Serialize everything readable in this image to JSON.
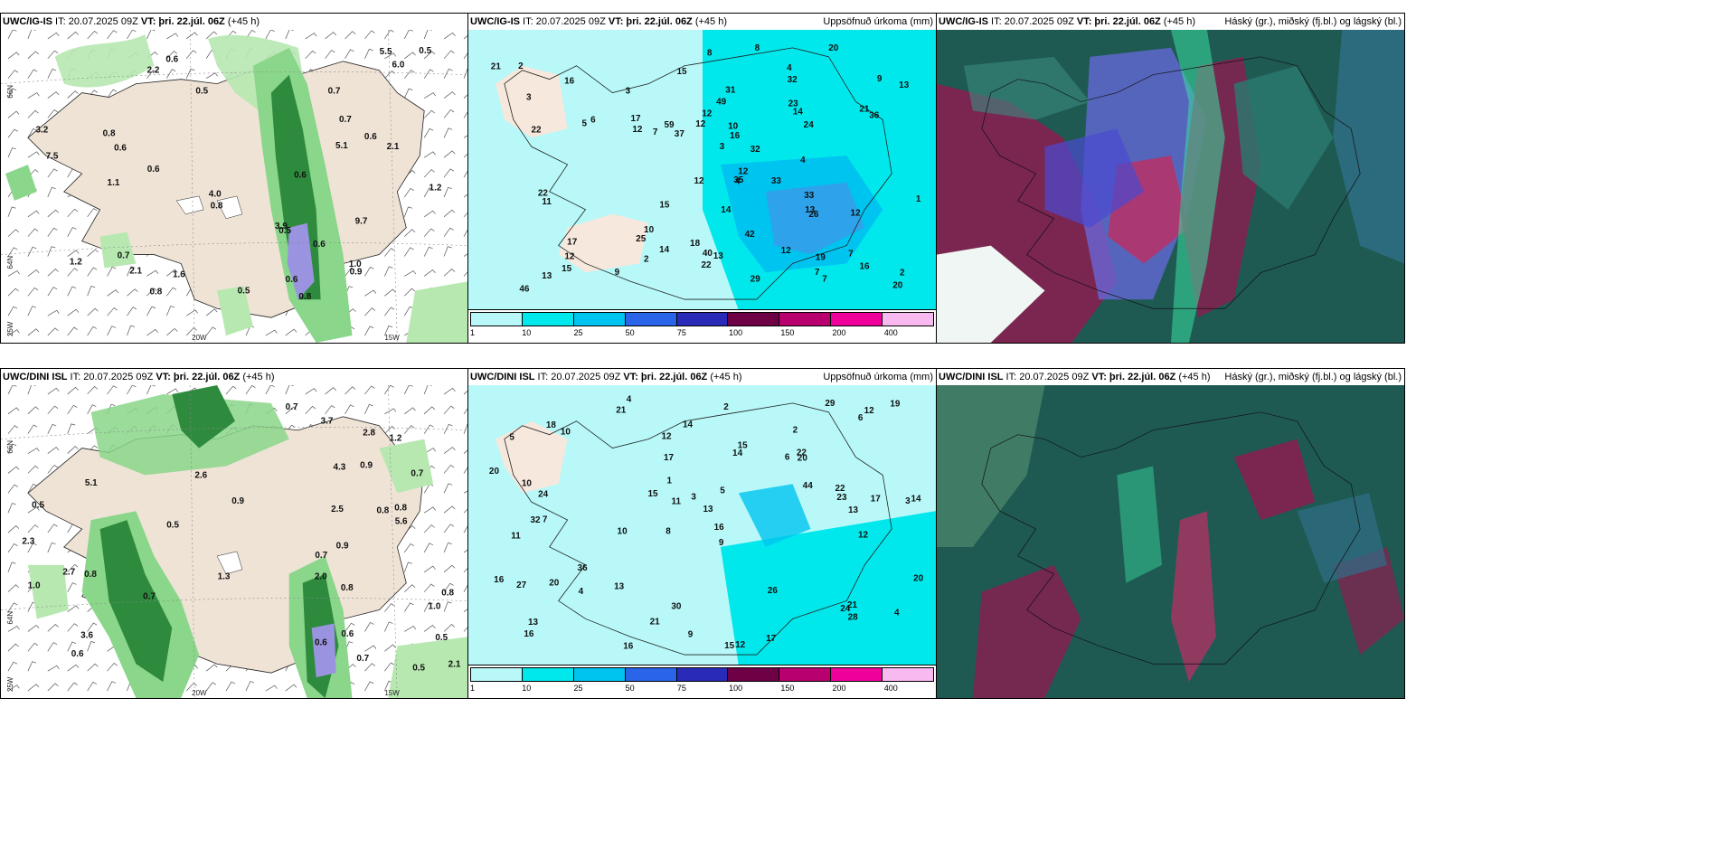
{
  "panels": [
    {
      "model": "UWC/IG-IS",
      "rest": " IT: 20.07.2025 09Z ",
      "vt_label": "VT: ",
      "vt": "þri. 22.júl. 06Z",
      "lead": " (+45 h)",
      "right": ""
    },
    {
      "model": "UWC/IG-IS",
      "rest": " IT: 20.07.2025 09Z ",
      "vt_label": "VT: ",
      "vt": "þri. 22.júl. 06Z",
      "lead": " (+45 h)",
      "right": "Uppsöfnuð úrkoma (mm)"
    },
    {
      "model": "UWC/IG-IS",
      "rest": " IT: 20.07.2025 09Z ",
      "vt_label": "VT: ",
      "vt": "þri. 22.júl. 06Z",
      "lead": " (+45 h)",
      "right": "Háský (gr.), miðský (fj.bl.) og lágský (bl.)"
    },
    {
      "model": "UWC/DINI ISL",
      "rest": " IT: 20.07.2025 09Z ",
      "vt_label": "VT: ",
      "vt": "þri. 22.júl. 06Z",
      "lead": " (+45 h)",
      "right": ""
    },
    {
      "model": "UWC/DINI ISL",
      "rest": " IT: 20.07.2025 09Z ",
      "vt_label": "VT: ",
      "vt": "þri. 22.júl. 06Z",
      "lead": " (+45 h)",
      "right": "Uppsöfnuð úrkoma (mm)"
    },
    {
      "model": "UWC/DINI ISL",
      "rest": " IT: 20.07.2025 09Z ",
      "vt_label": "VT: ",
      "vt": "þri. 22.júl. 06Z",
      "lead": " (+45 h)",
      "right": "Háský (gr.), miðský (fj.bl.) og lágský (bl.)"
    }
  ],
  "axes": {
    "lon": [
      "20W",
      "15W"
    ],
    "lat": [
      "66N",
      "64N",
      "25W"
    ]
  },
  "legend": {
    "colors": [
      "#b8f8f8",
      "#00e8ec",
      "#00c4f0",
      "#2a64e8",
      "#2a2ab8",
      "#6e0046",
      "#b8006e",
      "#f0009a",
      "#f8b8f0"
    ],
    "ticks": [
      "1",
      "10",
      "25",
      "50",
      "75",
      "100",
      "150",
      "200",
      "400"
    ]
  },
  "precip_top": [
    "0.8",
    "2.2",
    "0.7",
    "0.8",
    "0.6",
    "0.6",
    "1.2",
    "0.6",
    "0.8",
    "2.1",
    "1.2",
    "3.2",
    "4.0",
    "3.9",
    "5.1",
    "5.5",
    "7.5",
    "6.0",
    "9.7",
    "2.1",
    "1.0",
    "0.5",
    "0.8",
    "0.9",
    "0.6",
    "0.7",
    "1.1",
    "0.6",
    "0.5",
    "0.5",
    "0.6",
    "0.5",
    "0.7",
    "1.6",
    "0.6"
  ],
  "precip_bot": [
    "2.0",
    "0.8",
    "0.8",
    "1.0",
    "0.6",
    "0.9",
    "0.8",
    "0.9",
    "0.5",
    "0.7",
    "0.9",
    "0.7",
    "1.0",
    "0.8",
    "0.7",
    "0.5",
    "1.2",
    "2.7",
    "2.8",
    "2.6",
    "1.3",
    "2.3",
    "2.5",
    "3.7",
    "5.6",
    "3.6",
    "5.1",
    "4.3",
    "2.1",
    "0.8",
    "0.7",
    "0.7",
    "0.5",
    "0.6",
    "0.5",
    "0.6"
  ],
  "accum_top": [
    "13",
    "12",
    "12",
    "14",
    "15",
    "8",
    "7",
    "4",
    "19",
    "25",
    "20",
    "12",
    "14",
    "8",
    "12",
    "17",
    "13",
    "11",
    "12",
    "13",
    "21",
    "15",
    "22",
    "33",
    "26",
    "32",
    "59",
    "49",
    "36",
    "42",
    "16",
    "15",
    "31",
    "46",
    "35",
    "29",
    "40",
    "24",
    "22",
    "18",
    "5",
    "10",
    "3",
    "2",
    "4",
    "7",
    "12",
    "13",
    "1",
    "2",
    "3",
    "12",
    "2",
    "7",
    "17",
    "16",
    "21",
    "37",
    "32",
    "33",
    "16",
    "23",
    "14",
    "9",
    "7",
    "22",
    "20",
    "12",
    "9",
    "10",
    "6",
    "4",
    "3"
  ],
  "accum_bot": [
    "4",
    "2",
    "3",
    "8",
    "9",
    "7",
    "5",
    "6",
    "11",
    "14",
    "13",
    "16",
    "21",
    "10",
    "15",
    "12",
    "30",
    "29",
    "44",
    "36",
    "24",
    "32",
    "14",
    "17",
    "16",
    "10",
    "11",
    "23",
    "21",
    "27",
    "24",
    "15",
    "20",
    "15",
    "26",
    "20",
    "22",
    "21",
    "19",
    "14",
    "13",
    "16",
    "17",
    "18",
    "9",
    "20",
    "28",
    "22",
    "20",
    "16",
    "12",
    "13",
    "5",
    "6",
    "2",
    "4",
    "1",
    "3",
    "12",
    "17",
    "4",
    "12",
    "10",
    "13"
  ]
}
